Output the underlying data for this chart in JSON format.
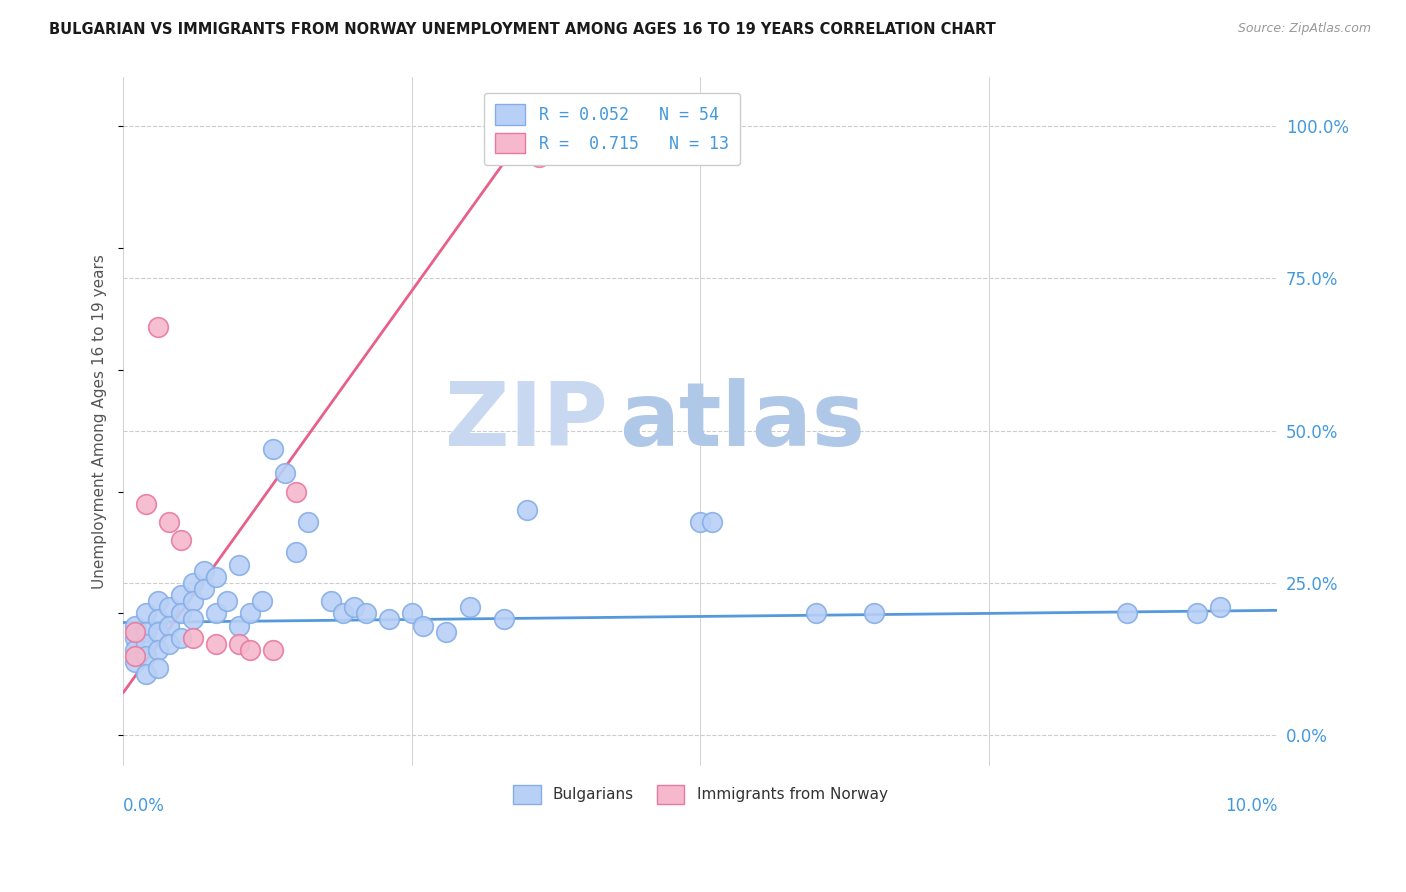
{
  "title": "BULGARIAN VS IMMIGRANTS FROM NORWAY UNEMPLOYMENT AMONG AGES 16 TO 19 YEARS CORRELATION CHART",
  "source": "Source: ZipAtlas.com",
  "ylabel": "Unemployment Among Ages 16 to 19 years",
  "xlim": [
    0.0,
    0.1
  ],
  "ylim": [
    -0.05,
    1.08
  ],
  "yticks": [
    0.0,
    0.25,
    0.5,
    0.75,
    1.0
  ],
  "ytick_labels": [
    "0.0%",
    "25.0%",
    "50.0%",
    "75.0%",
    "100.0%"
  ],
  "watermark_zip": "ZIP",
  "watermark_atlas": "atlas",
  "legend_r1": "R = 0.052",
  "legend_n1": "N = 54",
  "legend_r2": "R =  0.715",
  "legend_n2": "N = 13",
  "blue_scatter_x": [
    0.001,
    0.001,
    0.001,
    0.001,
    0.002,
    0.002,
    0.002,
    0.002,
    0.002,
    0.003,
    0.003,
    0.003,
    0.003,
    0.003,
    0.004,
    0.004,
    0.004,
    0.005,
    0.005,
    0.005,
    0.006,
    0.006,
    0.006,
    0.007,
    0.007,
    0.008,
    0.008,
    0.009,
    0.01,
    0.01,
    0.011,
    0.012,
    0.013,
    0.014,
    0.015,
    0.016,
    0.018,
    0.019,
    0.02,
    0.021,
    0.023,
    0.025,
    0.026,
    0.028,
    0.03,
    0.033,
    0.035,
    0.05,
    0.051,
    0.06,
    0.065,
    0.087,
    0.093,
    0.095
  ],
  "blue_scatter_y": [
    0.18,
    0.16,
    0.14,
    0.12,
    0.2,
    0.17,
    0.15,
    0.13,
    0.1,
    0.22,
    0.19,
    0.17,
    0.14,
    0.11,
    0.21,
    0.18,
    0.15,
    0.23,
    0.2,
    0.16,
    0.25,
    0.22,
    0.19,
    0.27,
    0.24,
    0.26,
    0.2,
    0.22,
    0.28,
    0.18,
    0.2,
    0.22,
    0.47,
    0.43,
    0.3,
    0.35,
    0.22,
    0.2,
    0.21,
    0.2,
    0.19,
    0.2,
    0.18,
    0.17,
    0.21,
    0.19,
    0.37,
    0.35,
    0.35,
    0.2,
    0.2,
    0.2,
    0.2,
    0.21
  ],
  "pink_scatter_x": [
    0.001,
    0.001,
    0.002,
    0.003,
    0.004,
    0.005,
    0.006,
    0.008,
    0.01,
    0.011,
    0.013,
    0.015,
    0.036
  ],
  "pink_scatter_y": [
    0.17,
    0.13,
    0.38,
    0.67,
    0.35,
    0.32,
    0.16,
    0.15,
    0.15,
    0.14,
    0.14,
    0.4,
    0.95
  ],
  "blue_line_x": [
    0.0,
    0.1
  ],
  "blue_line_y": [
    0.185,
    0.205
  ],
  "pink_line_x": [
    0.0,
    0.036
  ],
  "pink_line_y": [
    0.07,
    1.02
  ],
  "bg_color": "#ffffff",
  "grid_color": "#cccccc",
  "blue_dot_color": "#b8d0f5",
  "blue_dot_edge": "#85aee8",
  "pink_dot_color": "#f5b8cc",
  "pink_dot_edge": "#e87aa0",
  "blue_line_color": "#5599dd",
  "pink_line_color": "#e8608a",
  "title_color": "#1a1a1a",
  "axis_label_color": "#4499dd",
  "watermark_color_zip": "#c8d8f0",
  "watermark_color_atlas": "#b0c8e8",
  "dot_size": 200,
  "xtick_positions": [
    0.0,
    0.025,
    0.05,
    0.075,
    0.1
  ],
  "xlabel_left_x": 0.0,
  "xlabel_right_x": 0.1
}
